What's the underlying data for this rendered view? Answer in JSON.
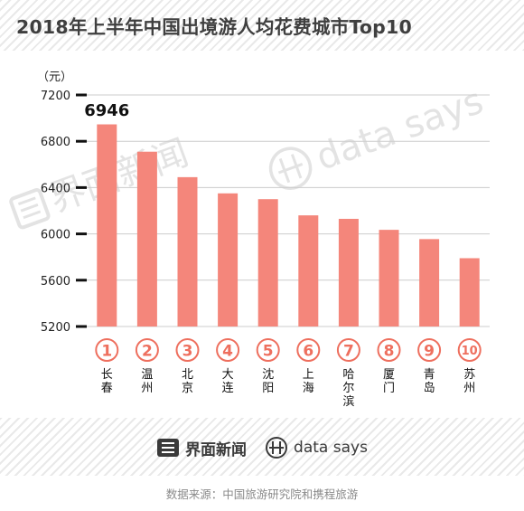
{
  "title": "2018年上半年中国出境游人均花费城市Top10",
  "footer": {
    "brand_cn": "界面新闻",
    "brand_en": "data says",
    "source": "数据来源：中国旅游研究院和携程旅游"
  },
  "watermarks": {
    "left": "界面新闻",
    "right": "data says"
  },
  "colors": {
    "bar": "#f4867b",
    "accent": "#ee6f5e",
    "title": "#3f3f3f",
    "grid": "#cccccc"
  },
  "chart_data": {
    "type": "bar",
    "title": "2018年上半年中国出境游人均花费城市Top10",
    "ylabel": "（元）",
    "ylim": [
      5200,
      7200
    ],
    "yticks": [
      5200,
      5600,
      6000,
      6400,
      6800,
      7200
    ],
    "ytick_labels": [
      "5200",
      "5600",
      "6000",
      "6400",
      "6800",
      "7200"
    ],
    "grid": true,
    "ranks": [
      "1",
      "2",
      "3",
      "4",
      "5",
      "6",
      "7",
      "8",
      "9",
      "10"
    ],
    "categories": [
      "长春",
      "温州",
      "北京",
      "大连",
      "沈阳",
      "上海",
      "哈尔滨",
      "厦门",
      "青岛",
      "苏州"
    ],
    "values": [
      6946,
      6710,
      6490,
      6350,
      6300,
      6160,
      6130,
      6035,
      5955,
      5790
    ],
    "data_labels": [
      {
        "index": 0,
        "text": "6946"
      }
    ]
  }
}
